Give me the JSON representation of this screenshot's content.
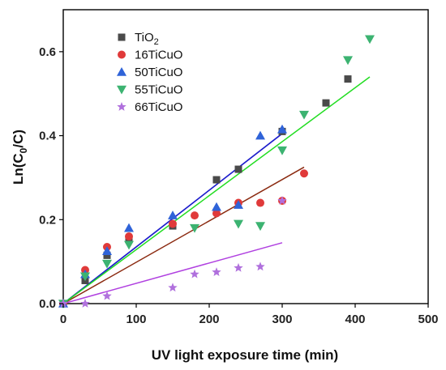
{
  "chart_data": {
    "type": "scatter",
    "title": "",
    "xlabel": "UV light exposure time (min)",
    "ylabel": "Ln(C0/C)",
    "ylabel_main": "Ln(C",
    "ylabel_sub": "0",
    "ylabel_tail": "/C)",
    "xlim": [
      0,
      500
    ],
    "ylim": [
      0,
      0.7
    ],
    "xticks": [
      0,
      100,
      200,
      300,
      400,
      500
    ],
    "yticks": [
      0.0,
      0.2,
      0.4,
      0.6
    ],
    "xtick_labels": [
      "0",
      "100",
      "200",
      "300",
      "400",
      "500"
    ],
    "ytick_labels": [
      "0.0",
      "0.2",
      "0.4",
      "0.6"
    ],
    "grid": false,
    "legend_position": "top-left",
    "series": [
      {
        "name": "TiO2",
        "name_main": "TiO",
        "name_sub": "2",
        "marker": "square",
        "color": "#4a4a4a",
        "line_color": "#1f1fcc",
        "x": [
          0,
          30,
          60,
          90,
          150,
          210,
          240,
          300,
          360,
          390
        ],
        "y": [
          0.0,
          0.055,
          0.115,
          0.155,
          0.185,
          0.295,
          0.32,
          0.41,
          0.478,
          0.535
        ],
        "fit": [
          [
            0,
            0.0
          ],
          [
            300,
            0.405
          ]
        ]
      },
      {
        "name": "16TiCuO",
        "marker": "circle",
        "color": "#e03a3a",
        "line_color": "#8b2a10",
        "x": [
          0,
          30,
          60,
          90,
          150,
          180,
          210,
          240,
          270,
          300,
          330
        ],
        "y": [
          0.0,
          0.08,
          0.135,
          0.16,
          0.19,
          0.21,
          0.215,
          0.24,
          0.24,
          0.245,
          0.31
        ],
        "fit": [
          [
            0,
            0.0
          ],
          [
            330,
            0.325
          ]
        ]
      },
      {
        "name": "50TiCuO",
        "marker": "triangle-up",
        "color": "#2f63d8",
        "line_color": "#1f1fcc",
        "x": [
          0,
          30,
          60,
          90,
          150,
          210,
          240,
          270,
          300
        ],
        "y": [
          0.0,
          0.07,
          0.125,
          0.18,
          0.21,
          0.23,
          0.235,
          0.4,
          0.415
        ],
        "fit": [
          [
            0,
            0.0
          ],
          [
            300,
            0.405
          ]
        ]
      },
      {
        "name": "55TiCuO",
        "marker": "triangle-down",
        "color": "#3cb371",
        "line_color": "#22dd22",
        "x": [
          0,
          30,
          60,
          90,
          180,
          240,
          270,
          300,
          330,
          390,
          420
        ],
        "y": [
          0.0,
          0.065,
          0.095,
          0.14,
          0.18,
          0.19,
          0.185,
          0.365,
          0.45,
          0.58,
          0.63
        ],
        "fit": [
          [
            0,
            0.0
          ],
          [
            420,
            0.54
          ]
        ]
      },
      {
        "name": "66TiCuO",
        "marker": "star",
        "color": "#b070dd",
        "line_color": "#b040e0",
        "x": [
          0,
          30,
          60,
          150,
          180,
          210,
          240,
          270,
          300
        ],
        "y": [
          0.0,
          0.0,
          0.018,
          0.038,
          0.07,
          0.075,
          0.085,
          0.088,
          0.245
        ],
        "fit": [
          [
            0,
            0.0
          ],
          [
            300,
            0.145
          ]
        ]
      }
    ]
  }
}
